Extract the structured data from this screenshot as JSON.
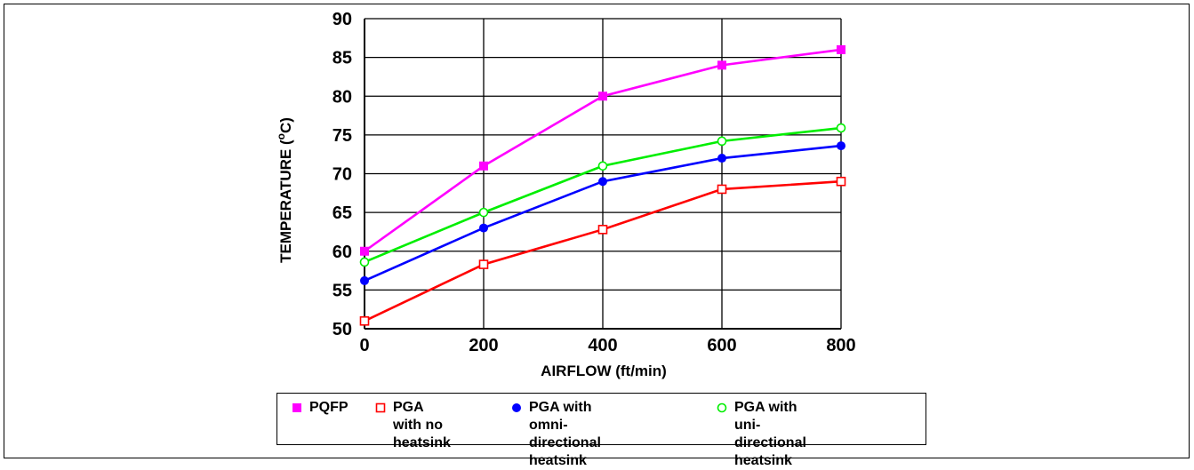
{
  "chart_data": {
    "type": "line",
    "x": [
      0,
      200,
      400,
      600,
      800
    ],
    "xlabel": "AIRFLOW (ft/min)",
    "ylabel_main": "TEMPERATURE (",
    "ylabel_sup": "o",
    "ylabel_end": "C)",
    "xlim": [
      0,
      800
    ],
    "ylim": [
      50,
      90
    ],
    "xticks": [
      "0",
      "200",
      "400",
      "600",
      "800"
    ],
    "yticks": [
      "50",
      "55",
      "60",
      "65",
      "70",
      "75",
      "80",
      "85",
      "90"
    ],
    "grid": true,
    "legend_position": "bottom",
    "series": [
      {
        "name": "PQFP",
        "color": "#ff00ff",
        "marker": "square-filled",
        "values": [
          60,
          71,
          80,
          84,
          86
        ]
      },
      {
        "name": "PGA with no\nheatsink",
        "color": "#ff0000",
        "marker": "square-open",
        "values": [
          51,
          58.3,
          62.8,
          68,
          69
        ]
      },
      {
        "name": "PGA with omni-\ndirectional heatsink",
        "color": "#0000ff",
        "marker": "circle-filled",
        "values": [
          56.2,
          63,
          69,
          72,
          73.6
        ]
      },
      {
        "name": "PGA with uni-\ndirectional heatsink",
        "color": "#00ee00",
        "marker": "circle-open",
        "values": [
          58.6,
          65,
          71,
          74.2,
          75.9
        ]
      }
    ]
  }
}
